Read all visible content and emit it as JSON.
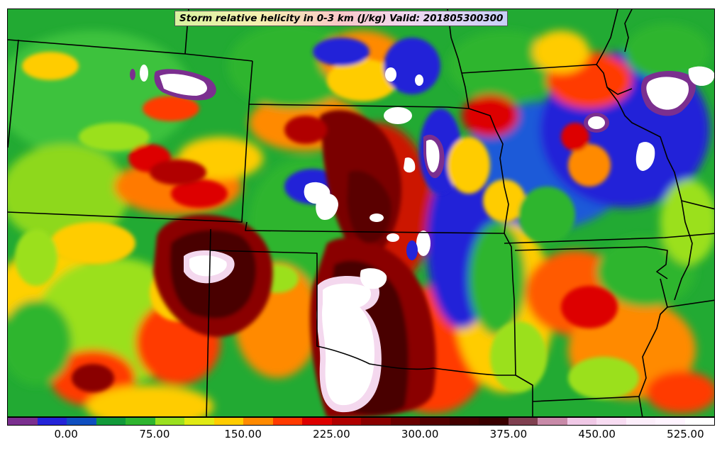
{
  "title": "Storm relative helicity in 0-3 km (J/kg) Valid: 201805300300",
  "colorbar": {
    "colors": [
      "#7b2f8f",
      "#2424d8",
      "#0f4fc0",
      "#129a3a",
      "#2fb52f",
      "#9be01f",
      "#e0ea14",
      "#ffcc00",
      "#ff8a00",
      "#ff3a00",
      "#dd0000",
      "#b00000",
      "#8a0000",
      "#6a0000",
      "#550000",
      "#440000",
      "#3a0000",
      "#804050",
      "#c88aa8",
      "#f0c8e6",
      "#f8dcf2",
      "#fceefa",
      "#fff4ff",
      "#ffffff"
    ],
    "labels": [
      "0.00",
      "75.00",
      "150.00",
      "225.00",
      "300.00",
      "375.00",
      "450.00",
      "525.00"
    ],
    "label_segment_index": [
      2,
      5,
      8,
      11,
      14,
      17,
      20,
      23
    ]
  }
}
